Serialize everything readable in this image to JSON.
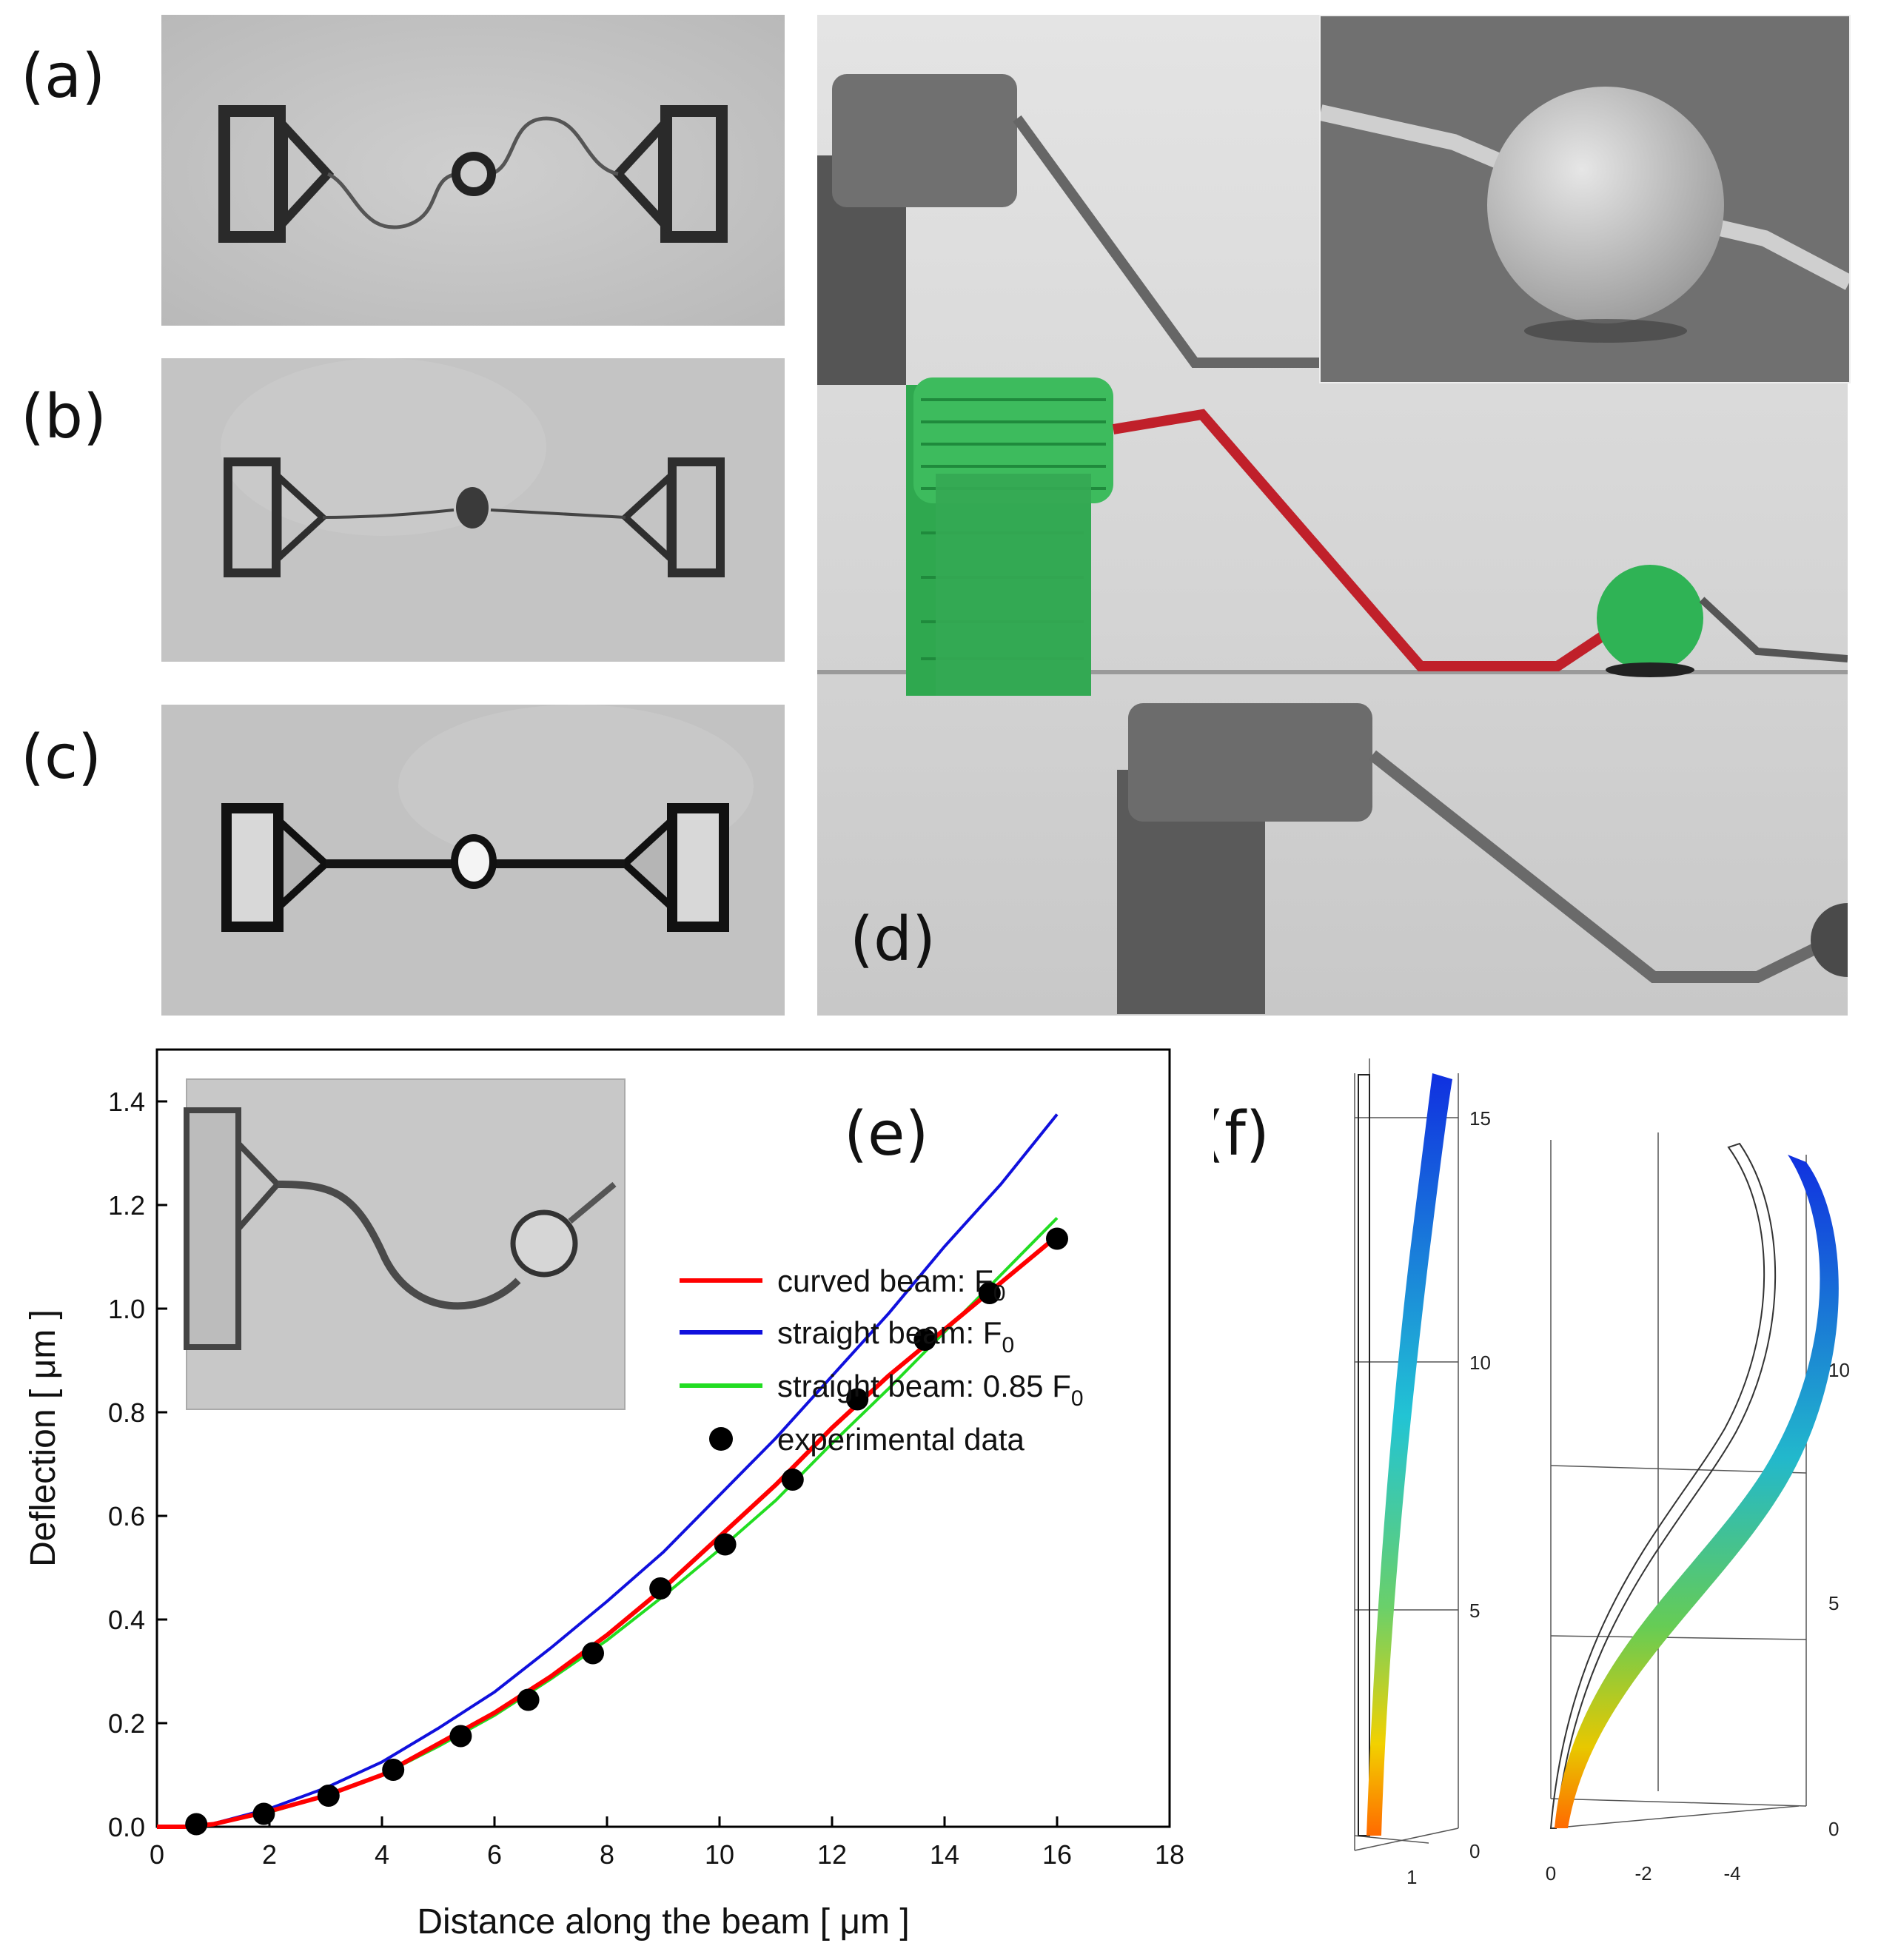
{
  "panels": {
    "a": "(a)",
    "b": "(b)",
    "c": "(c)",
    "d": "(d)",
    "e": "(e)",
    "f": "(f)"
  },
  "chart_data": {
    "type": "line",
    "xlabel": "Distance along the beam [ μm ]",
    "ylabel": "Deflection [ μm ]",
    "xlim": [
      0,
      18
    ],
    "ylim": [
      0,
      1.5
    ],
    "xticks": [
      "0",
      "2",
      "4",
      "6",
      "8",
      "10",
      "12",
      "14",
      "16",
      "18"
    ],
    "yticks": [
      "0.0",
      "0.2",
      "0.4",
      "0.6",
      "0.8",
      "1.0",
      "1.2",
      "1.4"
    ],
    "legend_position": "bottom-right",
    "series": [
      {
        "name": "curved beam: F",
        "subscript": "0",
        "color": "#ff0000",
        "style": "line",
        "x": [
          0.0,
          0.5,
          1.0,
          2.0,
          3.0,
          4.0,
          5.0,
          6.0,
          7.0,
          8.0,
          9.0,
          10.0,
          11.0,
          12.0,
          13.0,
          14.0,
          15.0,
          16.0
        ],
        "y": [
          0.0,
          0.0,
          0.005,
          0.03,
          0.06,
          0.1,
          0.16,
          0.22,
          0.29,
          0.37,
          0.46,
          0.56,
          0.66,
          0.77,
          0.87,
          0.96,
          1.05,
          1.14
        ]
      },
      {
        "name": "straight beam: F",
        "subscript": "0",
        "color": "#1010dd",
        "style": "line",
        "x": [
          0.0,
          0.5,
          1.0,
          2.0,
          3.0,
          4.0,
          5.0,
          6.0,
          7.0,
          8.0,
          9.0,
          10.0,
          11.0,
          12.0,
          13.0,
          14.0,
          15.0,
          16.0
        ],
        "y": [
          0.0,
          0.0,
          0.006,
          0.035,
          0.075,
          0.125,
          0.19,
          0.26,
          0.345,
          0.435,
          0.53,
          0.64,
          0.75,
          0.87,
          0.99,
          1.12,
          1.24,
          1.375
        ]
      },
      {
        "name": "straight beam: 0.85 F",
        "subscript": "0",
        "color": "#22dd22",
        "style": "line",
        "x": [
          0.0,
          0.5,
          1.0,
          2.0,
          3.0,
          4.0,
          5.0,
          6.0,
          7.0,
          8.0,
          9.0,
          10.0,
          11.0,
          12.0,
          13.0,
          14.0,
          15.0,
          16.0
        ],
        "y": [
          0.0,
          0.0,
          0.005,
          0.028,
          0.06,
          0.1,
          0.155,
          0.215,
          0.285,
          0.36,
          0.445,
          0.535,
          0.63,
          0.74,
          0.845,
          0.955,
          1.065,
          1.175
        ]
      },
      {
        "name": "experimental data",
        "color": "#000000",
        "style": "scatter",
        "x": [
          0.7,
          1.9,
          3.05,
          4.2,
          5.4,
          6.6,
          7.75,
          8.95,
          10.1,
          11.3,
          12.45,
          13.65,
          14.8,
          16.0
        ],
        "y": [
          0.005,
          0.025,
          0.06,
          0.11,
          0.175,
          0.245,
          0.335,
          0.46,
          0.545,
          0.67,
          0.825,
          0.94,
          1.03,
          1.135
        ]
      }
    ]
  },
  "panel_f": {
    "left_ticks": [
      "0",
      "5",
      "10",
      "15"
    ],
    "left_bottom_tick": "1",
    "right_ticks": [
      "0",
      "5",
      "10"
    ],
    "right_bottom_ticks": [
      "0",
      "-2",
      "-4"
    ]
  }
}
